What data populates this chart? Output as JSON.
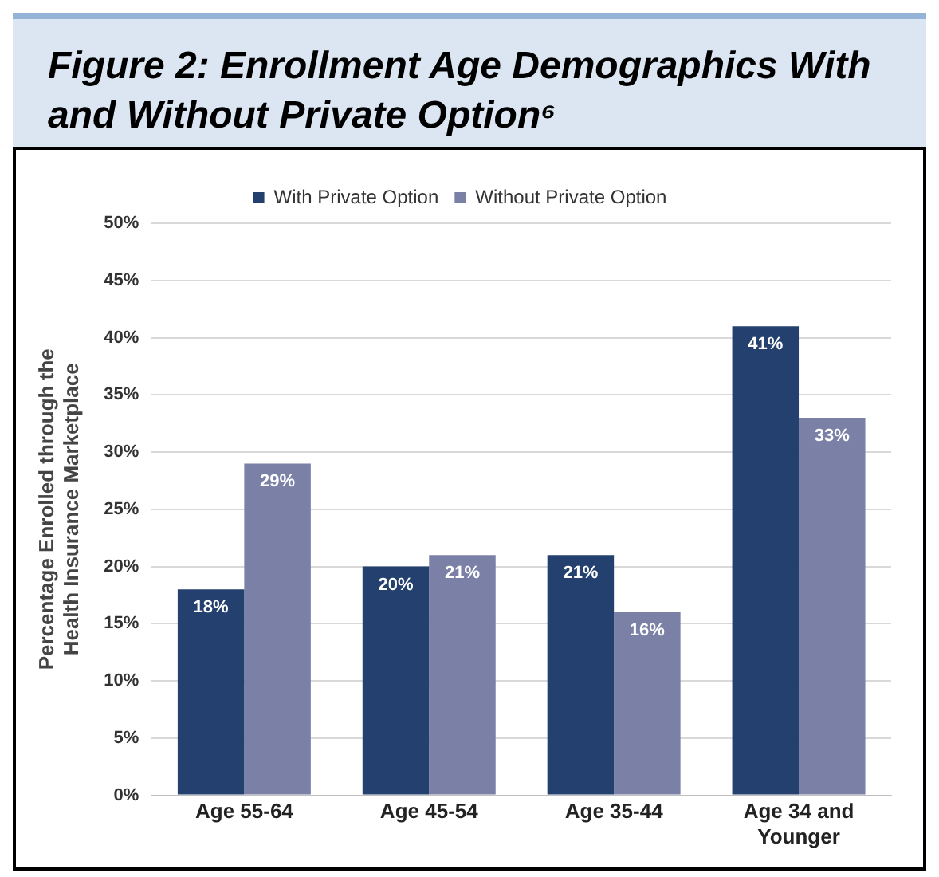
{
  "chart_data": {
    "type": "bar",
    "title": "Figure 2: Enrollment Age Demographics With and Without Private Option⁶",
    "ylabel": "Percentage Enrolled through the Health Insurance Marketplace",
    "categories": [
      "Age 55-64",
      "Age 45-54",
      "Age 35-44",
      "Age 34 and Younger"
    ],
    "series": [
      {
        "name": "With Private Option",
        "color": "#23406e",
        "values": [
          18,
          20,
          21,
          41
        ],
        "value_labels": [
          "18%",
          "20%",
          "21%",
          "41%"
        ]
      },
      {
        "name": "Without Private Option",
        "color": "#7b80a6",
        "values": [
          29,
          21,
          16,
          33
        ],
        "value_labels": [
          "29%",
          "21%",
          "16%",
          "33%"
        ]
      }
    ],
    "ylim": [
      0,
      50
    ],
    "yticks": [
      {
        "value": 0,
        "label": "0%"
      },
      {
        "value": 5,
        "label": "5%"
      },
      {
        "value": 10,
        "label": "10%"
      },
      {
        "value": 15,
        "label": "15%"
      },
      {
        "value": 20,
        "label": "20%"
      },
      {
        "value": 25,
        "label": "25%"
      },
      {
        "value": 30,
        "label": "30%"
      },
      {
        "value": 35,
        "label": "35%"
      },
      {
        "value": 40,
        "label": "40%"
      },
      {
        "value": 45,
        "label": "45%"
      },
      {
        "value": 50,
        "label": "50%"
      }
    ],
    "grid": "y",
    "legend": "top"
  }
}
